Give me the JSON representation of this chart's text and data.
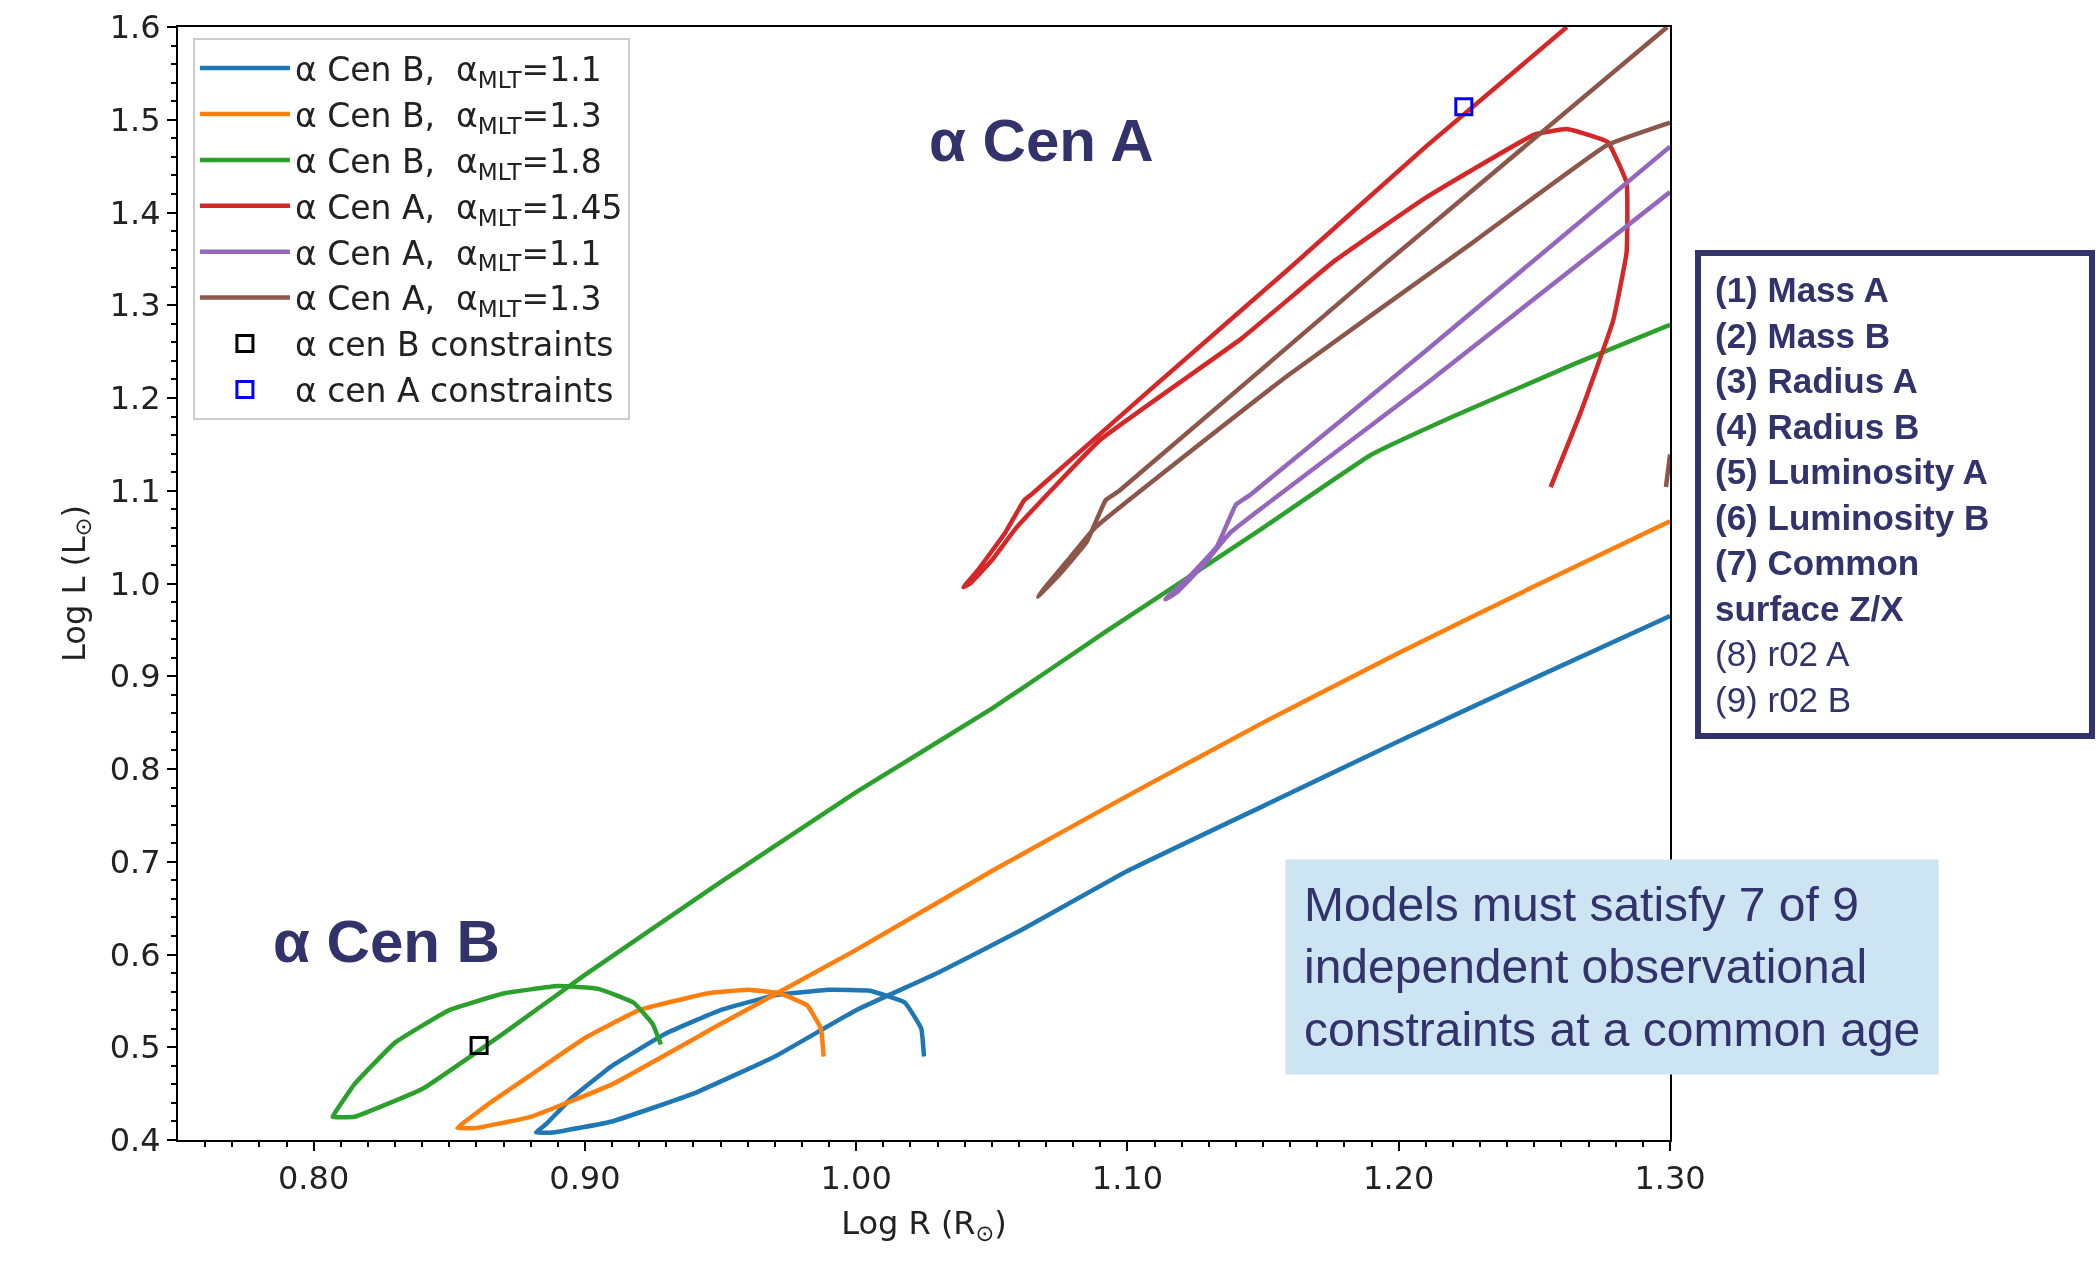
{
  "chart_data": {
    "type": "line",
    "xlabel": "Log R (R$_{⊙}$)",
    "ylabel": "Log L (L$_{⊙}$)",
    "xlim": [
      0.75,
      1.3
    ],
    "ylim": [
      0.4,
      1.6
    ],
    "xticks": [
      {
        "value": 0.8,
        "label": "0.80"
      },
      {
        "value": 0.9,
        "label": "0.90"
      },
      {
        "value": 1.0,
        "label": "1.00"
      },
      {
        "value": 1.1,
        "label": "1.10"
      },
      {
        "value": 1.2,
        "label": "1.20"
      },
      {
        "value": 1.3,
        "label": "1.30"
      },
      {
        "value": 0.76,
        "label": null
      },
      {
        "value": 0.77,
        "label": null
      },
      {
        "value": 0.78,
        "label": null
      },
      {
        "value": 0.79,
        "label": null
      },
      {
        "value": 0.81,
        "label": null
      },
      {
        "value": 0.82,
        "label": null
      },
      {
        "value": 0.83,
        "label": null
      },
      {
        "value": 0.84,
        "label": null
      },
      {
        "value": 0.85,
        "label": null
      },
      {
        "value": 0.86,
        "label": null
      },
      {
        "value": 0.87,
        "label": null
      },
      {
        "value": 0.88,
        "label": null
      },
      {
        "value": 0.89,
        "label": null
      },
      {
        "value": 0.91,
        "label": null
      },
      {
        "value": 0.92,
        "label": null
      },
      {
        "value": 0.93,
        "label": null
      },
      {
        "value": 0.94,
        "label": null
      },
      {
        "value": 0.95,
        "label": null
      },
      {
        "value": 0.96,
        "label": null
      },
      {
        "value": 0.97,
        "label": null
      },
      {
        "value": 0.98,
        "label": null
      },
      {
        "value": 0.99,
        "label": null
      },
      {
        "value": 1.01,
        "label": null
      },
      {
        "value": 1.02,
        "label": null
      },
      {
        "value": 1.03,
        "label": null
      },
      {
        "value": 1.04,
        "label": null
      },
      {
        "value": 1.05,
        "label": null
      },
      {
        "value": 1.06,
        "label": null
      },
      {
        "value": 1.07,
        "label": null
      },
      {
        "value": 1.08,
        "label": null
      },
      {
        "value": 1.09,
        "label": null
      },
      {
        "value": 1.11,
        "label": null
      },
      {
        "value": 1.12,
        "label": null
      },
      {
        "value": 1.13,
        "label": null
      },
      {
        "value": 1.14,
        "label": null
      },
      {
        "value": 1.15,
        "label": null
      },
      {
        "value": 1.16,
        "label": null
      },
      {
        "value": 1.17,
        "label": null
      },
      {
        "value": 1.18,
        "label": null
      },
      {
        "value": 1.19,
        "label": null
      },
      {
        "value": 1.21,
        "label": null
      },
      {
        "value": 1.22,
        "label": null
      },
      {
        "value": 1.23,
        "label": null
      },
      {
        "value": 1.24,
        "label": null
      },
      {
        "value": 1.25,
        "label": null
      },
      {
        "value": 1.26,
        "label": null
      },
      {
        "value": 1.27,
        "label": null
      },
      {
        "value": 1.28,
        "label": null
      },
      {
        "value": 1.29,
        "label": null
      }
    ],
    "yticks": [
      0.4,
      0.5,
      0.6,
      0.7,
      0.8,
      0.9,
      {
        "value": 1.0,
        "label": "1.0"
      },
      1.1,
      1.2,
      1.3,
      1.4,
      1.5,
      1.6,
      {
        "value": 0.42,
        "label": null
      },
      {
        "value": 0.44,
        "label": null
      },
      {
        "value": 0.46,
        "label": null
      },
      {
        "value": 0.48,
        "label": null
      },
      {
        "value": 0.52,
        "label": null
      },
      {
        "value": 0.54,
        "label": null
      },
      {
        "value": 0.56,
        "label": null
      },
      {
        "value": 0.58,
        "label": null
      },
      {
        "value": 0.62,
        "label": null
      },
      {
        "value": 0.64,
        "label": null
      },
      {
        "value": 0.66,
        "label": null
      },
      {
        "value": 0.68,
        "label": null
      },
      {
        "value": 0.72,
        "label": null
      },
      {
        "value": 0.74,
        "label": null
      },
      {
        "value": 0.76,
        "label": null
      },
      {
        "value": 0.78,
        "label": null
      },
      {
        "value": 0.82,
        "label": null
      },
      {
        "value": 0.84,
        "label": null
      },
      {
        "value": 0.86,
        "label": null
      },
      {
        "value": 0.88,
        "label": null
      },
      {
        "value": 0.92,
        "label": null
      },
      {
        "value": 0.94,
        "label": null
      },
      {
        "value": 0.96,
        "label": null
      },
      {
        "value": 0.98,
        "label": null
      },
      {
        "value": 1.02,
        "label": null
      },
      {
        "value": 1.04,
        "label": null
      },
      {
        "value": 1.06,
        "label": null
      },
      {
        "value": 1.08,
        "label": null
      },
      {
        "value": 1.12,
        "label": null
      },
      {
        "value": 1.14,
        "label": null
      },
      {
        "value": 1.16,
        "label": null
      },
      {
        "value": 1.18,
        "label": null
      },
      {
        "value": 1.22,
        "label": null
      },
      {
        "value": 1.24,
        "label": null
      },
      {
        "value": 1.26,
        "label": null
      },
      {
        "value": 1.28,
        "label": null
      },
      {
        "value": 1.32,
        "label": null
      },
      {
        "value": 1.34,
        "label": null
      },
      {
        "value": 1.36,
        "label": null
      },
      {
        "value": 1.38,
        "label": null
      },
      {
        "value": 1.42,
        "label": null
      },
      {
        "value": 1.44,
        "label": null
      },
      {
        "value": 1.46,
        "label": null
      },
      {
        "value": 1.48,
        "label": null
      },
      {
        "value": 1.52,
        "label": null
      },
      {
        "value": 1.54,
        "label": null
      },
      {
        "value": 1.56,
        "label": null
      },
      {
        "value": 1.58,
        "label": null
      }
    ],
    "legend": "top left",
    "line_style": "solid",
    "marker": "none",
    "series": [
      {
        "name": "α Cen B,  α$_{MLT}$=1.1",
        "color": "#1f77b4",
        "x": [
          1.025,
          1.024,
          1.018,
          1.005,
          0.99,
          0.97,
          0.95,
          0.93,
          0.91,
          0.895,
          0.886,
          0.882,
          0.888,
          0.91,
          0.94,
          0.97,
          1.0,
          1.03,
          1.06,
          1.1,
          1.15,
          1.2,
          1.25,
          1.3
        ],
        "values": [
          0.49,
          0.52,
          0.548,
          0.561,
          0.562,
          0.556,
          0.54,
          0.515,
          0.48,
          0.445,
          0.418,
          0.408,
          0.408,
          0.42,
          0.45,
          0.49,
          0.54,
          0.58,
          0.625,
          0.69,
          0.76,
          0.83,
          0.898,
          0.965
        ]
      },
      {
        "name": "α Cen B,  α$_{MLT}$=1.3",
        "color": "#ff7f0e",
        "x": [
          0.988,
          0.987,
          0.982,
          0.972,
          0.96,
          0.945,
          0.92,
          0.9,
          0.88,
          0.865,
          0.855,
          0.853,
          0.86,
          0.88,
          0.91,
          0.95,
          1.0,
          1.05,
          1.1,
          1.15,
          1.2,
          1.25,
          1.3
        ],
        "values": [
          0.49,
          0.52,
          0.545,
          0.558,
          0.562,
          0.558,
          0.54,
          0.51,
          0.47,
          0.44,
          0.418,
          0.413,
          0.413,
          0.425,
          0.46,
          0.525,
          0.605,
          0.69,
          0.771,
          0.85,
          0.925,
          0.997,
          1.067
        ]
      },
      {
        "name": "α Cen B,  α$_{MLT}$=1.8",
        "color": "#2ca02c",
        "x": [
          0.928,
          0.925,
          0.918,
          0.905,
          0.89,
          0.87,
          0.85,
          0.83,
          0.815,
          0.808,
          0.807,
          0.815,
          0.84,
          0.87,
          0.9,
          0.95,
          1.0,
          1.05,
          1.092,
          1.15,
          1.19,
          1.22,
          1.265,
          1.3
        ],
        "values": [
          0.503,
          0.525,
          0.548,
          0.563,
          0.566,
          0.558,
          0.54,
          0.505,
          0.46,
          0.43,
          0.425,
          0.425,
          0.455,
          0.515,
          0.578,
          0.678,
          0.775,
          0.865,
          0.948,
          1.06,
          1.139,
          1.18,
          1.237,
          1.279
        ]
      },
      {
        "name": "α Cen A,  α$_{MLT}$=1.45",
        "color": "#d62728",
        "x": [
          1.256,
          1.267,
          1.279,
          1.284,
          1.284,
          1.277,
          1.262,
          1.25,
          1.21,
          1.176,
          1.142,
          1.09,
          1.059,
          1.05,
          1.042,
          1.0396,
          1.045,
          1.055,
          1.062,
          1.065,
          1.108,
          1.159,
          1.21,
          1.262
        ],
        "values": [
          1.104,
          1.184,
          1.283,
          1.357,
          1.432,
          1.476,
          1.49,
          1.484,
          1.416,
          1.347,
          1.264,
          1.155,
          1.06,
          1.025,
          1.0,
          0.996,
          1.015,
          1.055,
          1.09,
          1.097,
          1.208,
          1.338,
          1.471,
          1.6
        ]
      },
      {
        "name": "α Cen A,  α$_{MLT}$=1.1",
        "color": "#9467bd",
        "x": [
          1.3,
          1.21,
          1.138,
          1.128,
          1.118,
          1.114,
          1.122,
          1.133,
          1.14,
          1.145,
          1.21,
          1.3
        ],
        "values": [
          1.422,
          1.215,
          1.055,
          1.02,
          0.99,
          0.983,
          1.005,
          1.04,
          1.085,
          1.095,
          1.251,
          1.471
        ]
      },
      {
        "name": "α Cen A,  α$_{MLT}$=1.3",
        "color": "#8c564b",
        "x": [
          1.3,
          1.277,
          1.227,
          1.159,
          1.088,
          1.078,
          1.07,
          1.067,
          1.075,
          1.085,
          1.092,
          1.097,
          1.193,
          1.299,
          null,
          1.2985,
          1.3
        ],
        "values": [
          1.497,
          1.473,
          1.367,
          1.224,
          1.06,
          1.025,
          0.997,
          0.986,
          1.01,
          1.045,
          1.09,
          1.1,
          1.34,
          1.6,
          null,
          1.104,
          1.139
        ]
      },
      {
        "name": "α cen B constraints",
        "color": "#000000",
        "type": "scatter",
        "marker": "square",
        "x": [
          0.861
        ],
        "values": [
          0.502
        ]
      },
      {
        "name": "α cen A constraints",
        "color": "#0000ff",
        "type": "scatter",
        "marker": "square",
        "x": [
          1.224
        ],
        "values": [
          1.514
        ]
      }
    ],
    "annotations": [
      "α Cen A",
      "α Cen B",
      "(1) Mass A",
      "(2) Mass B",
      "(3) Radius A",
      "(4) Radius B",
      "(5) Luminosity A",
      "(6) Luminosity B",
      "(7) Common\nsurface Z/X",
      "(8) r02 A",
      "(9) r02 B",
      "Models must satisfy 7 of 9\nindependent observational\nconstraints at a common age"
    ]
  }
}
